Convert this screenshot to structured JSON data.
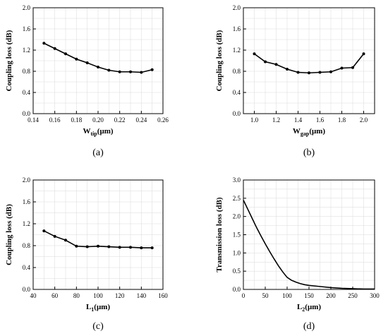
{
  "chart_data": [
    {
      "type": "line",
      "caption": "(a)",
      "ylabel": "Coupling loss (dB)",
      "xlabel_main": "W",
      "xlabel_sub": "tip",
      "xlabel_unit": "(μm)",
      "xlim": [
        0.14,
        0.26
      ],
      "ylim": [
        0.0,
        2.0
      ],
      "xticks": [
        "0.14",
        "0.16",
        "0.18",
        "0.20",
        "0.22",
        "0.24",
        "0.26"
      ],
      "yticks": [
        "0.0",
        "0.4",
        "0.8",
        "1.2",
        "1.6",
        "2.0"
      ],
      "grid": true,
      "markers": true,
      "x": [
        0.15,
        0.16,
        0.17,
        0.18,
        0.19,
        0.2,
        0.21,
        0.22,
        0.23,
        0.24,
        0.25
      ],
      "y": [
        1.33,
        1.23,
        1.13,
        1.03,
        0.96,
        0.88,
        0.82,
        0.79,
        0.79,
        0.78,
        0.83
      ]
    },
    {
      "type": "line",
      "caption": "(b)",
      "ylabel": "Coupling loss (dB)",
      "xlabel_main": "W",
      "xlabel_sub": "gap",
      "xlabel_unit": "(μm)",
      "xlim": [
        0.9,
        2.1
      ],
      "ylim": [
        0.0,
        2.0
      ],
      "xticks": [
        "1.0",
        "1.2",
        "1.4",
        "1.6",
        "1.8",
        "2.0"
      ],
      "xtick_values": [
        1.0,
        1.2,
        1.4,
        1.6,
        1.8,
        2.0
      ],
      "yticks": [
        "0.0",
        "0.4",
        "0.8",
        "1.2",
        "1.6",
        "2.0"
      ],
      "grid": true,
      "markers": true,
      "x": [
        1.0,
        1.1,
        1.2,
        1.3,
        1.4,
        1.5,
        1.6,
        1.7,
        1.8,
        1.9,
        2.0
      ],
      "y": [
        1.13,
        0.98,
        0.93,
        0.84,
        0.78,
        0.77,
        0.78,
        0.79,
        0.86,
        0.87,
        1.13
      ]
    },
    {
      "type": "line",
      "caption": "(c)",
      "ylabel": "Coupling loss (dB)",
      "xlabel_main": "L",
      "xlabel_sub": "1",
      "xlabel_unit": "(μm)",
      "xlim": [
        40,
        160
      ],
      "ylim": [
        0.0,
        2.0
      ],
      "xticks": [
        "40",
        "60",
        "80",
        "100",
        "120",
        "140",
        "160"
      ],
      "yticks": [
        "0.0",
        "0.4",
        "0.8",
        "1.2",
        "1.6",
        "2.0"
      ],
      "grid": true,
      "markers": true,
      "x": [
        50,
        60,
        70,
        80,
        90,
        100,
        110,
        120,
        130,
        140,
        150
      ],
      "y": [
        1.07,
        0.97,
        0.9,
        0.79,
        0.78,
        0.79,
        0.78,
        0.77,
        0.77,
        0.76,
        0.76
      ]
    },
    {
      "type": "line",
      "caption": "(d)",
      "ylabel": "Transmission loss (dB)",
      "xlabel_main": "L",
      "xlabel_sub": "2",
      "xlabel_unit": "(μm)",
      "xlim": [
        0,
        300
      ],
      "ylim": [
        0.0,
        3.0
      ],
      "xticks": [
        "0",
        "50",
        "100",
        "150",
        "200",
        "250",
        "300"
      ],
      "yticks": [
        "0.0",
        "0.5",
        "1.0",
        "1.5",
        "2.0",
        "2.5",
        "3.0"
      ],
      "grid": true,
      "markers": false,
      "x": [
        0,
        10,
        20,
        30,
        40,
        50,
        60,
        70,
        80,
        90,
        100,
        110,
        120,
        130,
        140,
        150,
        175,
        200,
        225,
        250,
        275,
        300
      ],
      "y": [
        2.45,
        2.2,
        1.95,
        1.7,
        1.47,
        1.25,
        1.04,
        0.84,
        0.65,
        0.48,
        0.33,
        0.25,
        0.2,
        0.16,
        0.13,
        0.11,
        0.08,
        0.05,
        0.03,
        0.02,
        0.01,
        0.01
      ]
    }
  ]
}
